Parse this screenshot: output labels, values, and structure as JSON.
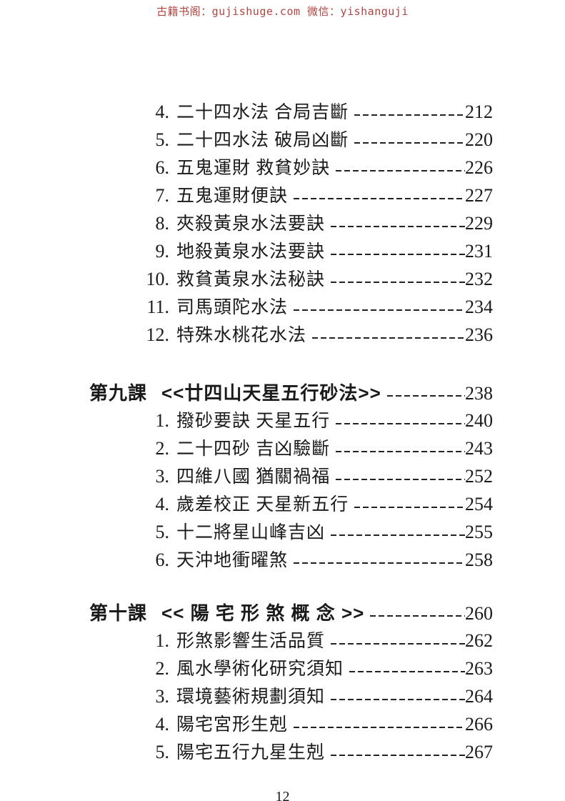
{
  "colors": {
    "watermark_red": "#b04540",
    "ink": "#1a1a1a"
  },
  "header": {
    "watermark": "古籍书阁：gujishuge.com 微信：yishanguji"
  },
  "toc": {
    "sections": [
      {
        "heading": null,
        "items": [
          {
            "num": "4.",
            "title": "二十四水法 合局吉斷",
            "page": "212"
          },
          {
            "num": "5.",
            "title": "二十四水法 破局凶斷",
            "page": "220"
          },
          {
            "num": "6.",
            "title": "五鬼運財 救貧妙訣",
            "page": "226"
          },
          {
            "num": "7.",
            "title": "五鬼運財便訣",
            "page": "227"
          },
          {
            "num": "8.",
            "title": "夾殺黃泉水法要訣",
            "page": "229"
          },
          {
            "num": "9.",
            "title": "地殺黃泉水法要訣",
            "page": "231"
          },
          {
            "num": "10.",
            "title": "救貧黃泉水法秘訣",
            "page": "232"
          },
          {
            "num": "11.",
            "title": "司馬頭陀水法",
            "page": "234"
          },
          {
            "num": "12.",
            "title": "特殊水桃花水法",
            "page": "236"
          }
        ]
      },
      {
        "heading": {
          "label": "第九課",
          "title": "<<廿四山天星五行砂法>>",
          "page": "238"
        },
        "items": [
          {
            "num": "1.",
            "title": "撥砂要訣 天星五行",
            "page": "240"
          },
          {
            "num": "2.",
            "title": "二十四砂 吉凶驗斷",
            "page": "243"
          },
          {
            "num": "3.",
            "title": "四維八國 猶關禍福",
            "page": "252"
          },
          {
            "num": "4.",
            "title": "歲差校正 天星新五行",
            "page": "254"
          },
          {
            "num": "5.",
            "title": "十二將星山峰吉凶",
            "page": "255"
          },
          {
            "num": "6.",
            "title": "天沖地衝曜煞",
            "page": "258"
          }
        ]
      },
      {
        "heading": {
          "label": "第十課",
          "title": "<< 陽 宅 形 煞 概 念 >>",
          "page": "260"
        },
        "items": [
          {
            "num": "1.",
            "title": "形煞影響生活品質",
            "page": "262"
          },
          {
            "num": "2.",
            "title": "風水學術化研究須知",
            "page": "263"
          },
          {
            "num": "3.",
            "title": "環境藝術規劃須知",
            "page": "264"
          },
          {
            "num": "4.",
            "title": "陽宅宮形生剋",
            "page": "266"
          },
          {
            "num": "5.",
            "title": "陽宅五行九星生剋",
            "page": "267"
          }
        ]
      }
    ]
  },
  "footer": {
    "folio": "12"
  }
}
